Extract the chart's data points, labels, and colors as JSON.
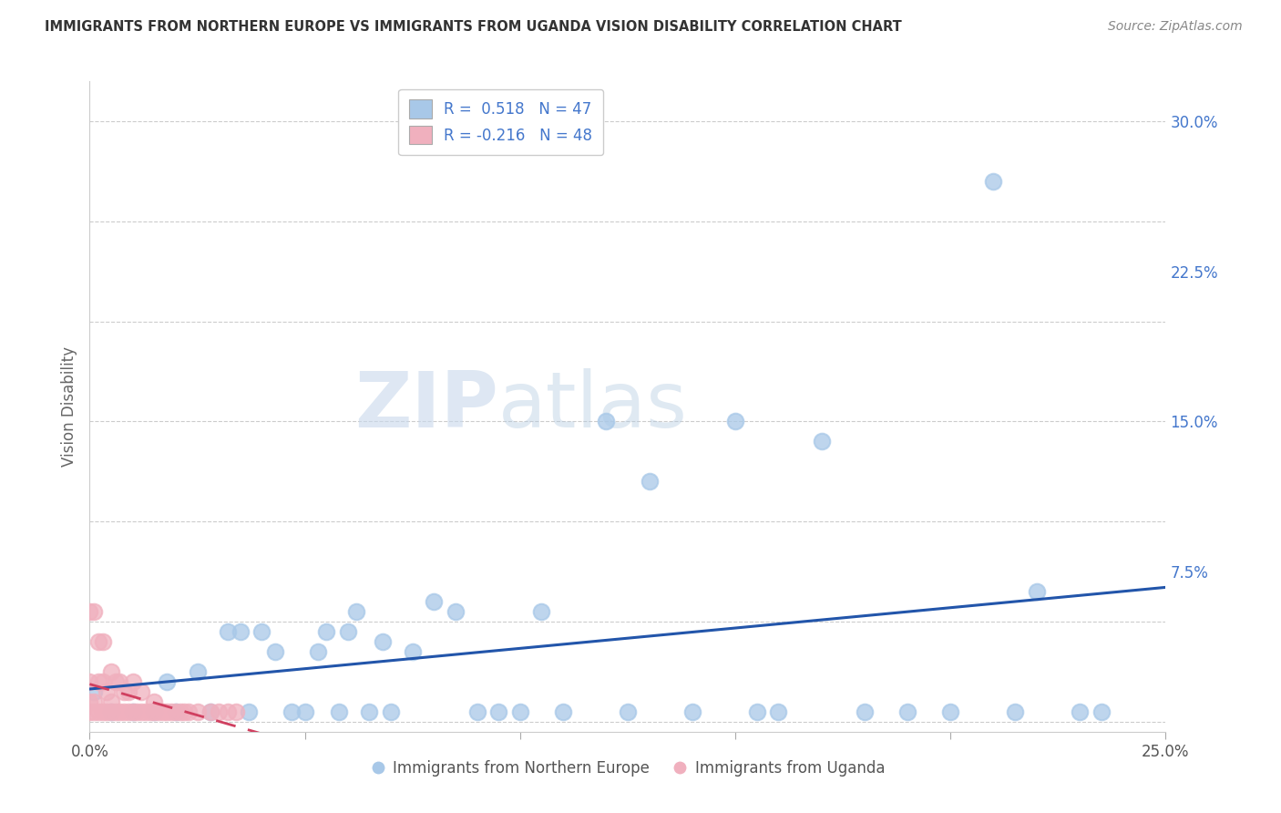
{
  "title": "IMMIGRANTS FROM NORTHERN EUROPE VS IMMIGRANTS FROM UGANDA VISION DISABILITY CORRELATION CHART",
  "source": "Source: ZipAtlas.com",
  "ylabel": "Vision Disability",
  "xlim": [
    0.0,
    0.25
  ],
  "ylim": [
    -0.005,
    0.32
  ],
  "x_ticks": [
    0.0,
    0.05,
    0.1,
    0.15,
    0.2,
    0.25
  ],
  "x_tick_labels": [
    "0.0%",
    "",
    "",
    "",
    "",
    "25.0%"
  ],
  "y_ticks": [
    0.0,
    0.075,
    0.15,
    0.225,
    0.3
  ],
  "y_tick_labels": [
    "",
    "7.5%",
    "15.0%",
    "22.5%",
    "30.0%"
  ],
  "legend_blue_label": "R =  0.518   N = 47",
  "legend_pink_label": "R = -0.216   N = 48",
  "legend1_label": "Immigrants from Northern Europe",
  "legend2_label": "Immigrants from Uganda",
  "blue_color": "#a8c8e8",
  "pink_color": "#f0b0be",
  "blue_line_color": "#2255aa",
  "pink_line_color": "#d04060",
  "watermark_zip": "ZIP",
  "watermark_atlas": "atlas",
  "blue_scatter_x": [
    0.001,
    0.005,
    0.01,
    0.015,
    0.018,
    0.02,
    0.025,
    0.028,
    0.032,
    0.035,
    0.037,
    0.04,
    0.043,
    0.047,
    0.05,
    0.053,
    0.055,
    0.058,
    0.06,
    0.062,
    0.065,
    0.068,
    0.07,
    0.075,
    0.08,
    0.085,
    0.09,
    0.095,
    0.1,
    0.105,
    0.11,
    0.12,
    0.125,
    0.13,
    0.14,
    0.15,
    0.155,
    0.16,
    0.17,
    0.18,
    0.19,
    0.2,
    0.21,
    0.215,
    0.22,
    0.23,
    0.235
  ],
  "blue_scatter_y": [
    0.015,
    0.005,
    0.005,
    0.005,
    0.02,
    0.005,
    0.025,
    0.005,
    0.045,
    0.045,
    0.005,
    0.045,
    0.035,
    0.005,
    0.005,
    0.035,
    0.045,
    0.005,
    0.045,
    0.055,
    0.005,
    0.04,
    0.005,
    0.035,
    0.06,
    0.055,
    0.005,
    0.005,
    0.005,
    0.055,
    0.005,
    0.15,
    0.005,
    0.12,
    0.005,
    0.15,
    0.005,
    0.005,
    0.14,
    0.005,
    0.005,
    0.005,
    0.27,
    0.005,
    0.065,
    0.005,
    0.005
  ],
  "pink_scatter_x": [
    0.0,
    0.0,
    0.0,
    0.0,
    0.001,
    0.001,
    0.001,
    0.002,
    0.002,
    0.002,
    0.003,
    0.003,
    0.003,
    0.004,
    0.004,
    0.005,
    0.005,
    0.005,
    0.006,
    0.006,
    0.007,
    0.007,
    0.008,
    0.008,
    0.009,
    0.009,
    0.01,
    0.01,
    0.011,
    0.012,
    0.012,
    0.013,
    0.014,
    0.015,
    0.015,
    0.016,
    0.017,
    0.018,
    0.019,
    0.02,
    0.021,
    0.022,
    0.023,
    0.025,
    0.028,
    0.03,
    0.032,
    0.034
  ],
  "pink_scatter_y": [
    0.005,
    0.01,
    0.02,
    0.055,
    0.005,
    0.01,
    0.055,
    0.005,
    0.02,
    0.04,
    0.005,
    0.02,
    0.04,
    0.005,
    0.015,
    0.005,
    0.01,
    0.025,
    0.005,
    0.02,
    0.005,
    0.02,
    0.005,
    0.015,
    0.005,
    0.015,
    0.005,
    0.02,
    0.005,
    0.005,
    0.015,
    0.005,
    0.005,
    0.005,
    0.01,
    0.005,
    0.005,
    0.005,
    0.005,
    0.005,
    0.005,
    0.005,
    0.005,
    0.005,
    0.005,
    0.005,
    0.005,
    0.005
  ]
}
